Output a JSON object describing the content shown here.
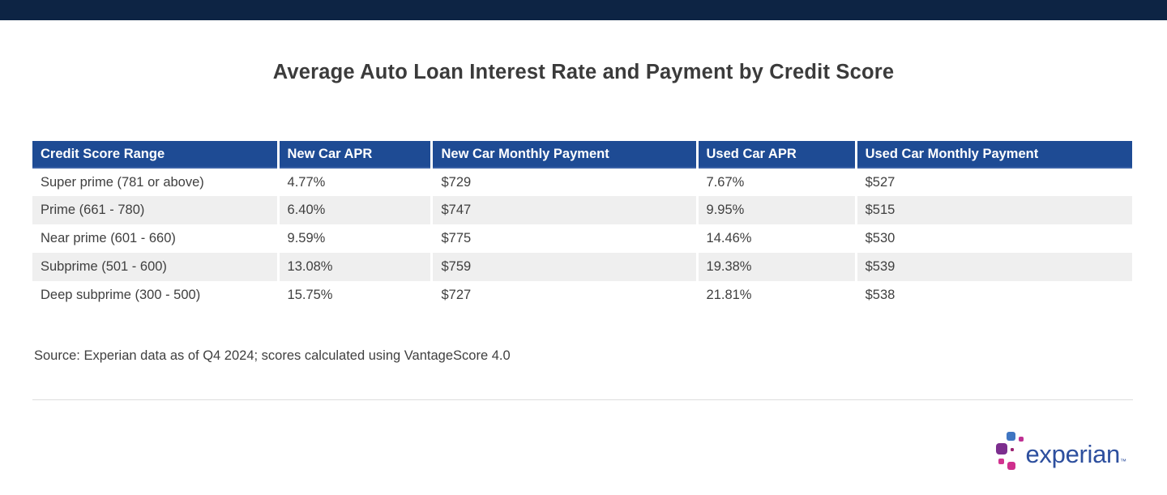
{
  "topbar": {
    "color": "#0d2444"
  },
  "title": "Average Auto Loan Interest Rate and Payment by Credit Score",
  "chart_data": {
    "type": "table",
    "title": "Average Auto Loan Interest Rate and Payment by Credit Score",
    "columns": [
      "Credit Score Range",
      "New Car APR",
      "New Car Monthly Payment",
      "Used Car APR",
      "Used Car Monthly Payment"
    ],
    "rows": [
      [
        "Super prime (781 or above)",
        "4.77%",
        "$729",
        "7.67%",
        "$527"
      ],
      [
        "Prime (661 - 780)",
        "6.40%",
        "$747",
        "9.95%",
        "$515"
      ],
      [
        "Near prime (601 - 660)",
        "9.59%",
        "$775",
        "14.46%",
        "$530"
      ],
      [
        "Subprime (501 - 600)",
        "13.08%",
        "$759",
        "19.38%",
        "$539"
      ],
      [
        "Deep subprime (300 - 500)",
        "15.75%",
        "$727",
        "21.81%",
        "$538"
      ]
    ],
    "header_bg": "#1e4b94",
    "header_text_color": "#ffffff",
    "stripe_color": "#efefef"
  },
  "table": {
    "columns": [
      "Credit Score Range",
      "New Car APR",
      "New Car Monthly Payment",
      "Used Car APR",
      "Used Car Monthly Payment"
    ],
    "rows": [
      [
        "Super prime (781 or above)",
        "4.77%",
        "$729",
        "7.67%",
        "$527"
      ],
      [
        "Prime (661 - 780)",
        "6.40%",
        "$747",
        "9.95%",
        "$515"
      ],
      [
        "Near prime (601 - 660)",
        "9.59%",
        "$775",
        "14.46%",
        "$530"
      ],
      [
        "Subprime (501 - 600)",
        "13.08%",
        "$759",
        "19.38%",
        "$539"
      ],
      [
        "Deep subprime (300 - 500)",
        "15.75%",
        "$727",
        "21.81%",
        "$538"
      ]
    ]
  },
  "source": "Source: Experian data as of Q4 2024; scores calculated using VantageScore 4.0",
  "logo": {
    "word": "experian",
    "trademark": "TM",
    "wordmark_color": "#2d4f9e",
    "pixel_colors": [
      "#3f76c2",
      "#bf3193",
      "#7c2e8e",
      "#9c2272",
      "#d23390",
      "#cf2f8d"
    ]
  }
}
